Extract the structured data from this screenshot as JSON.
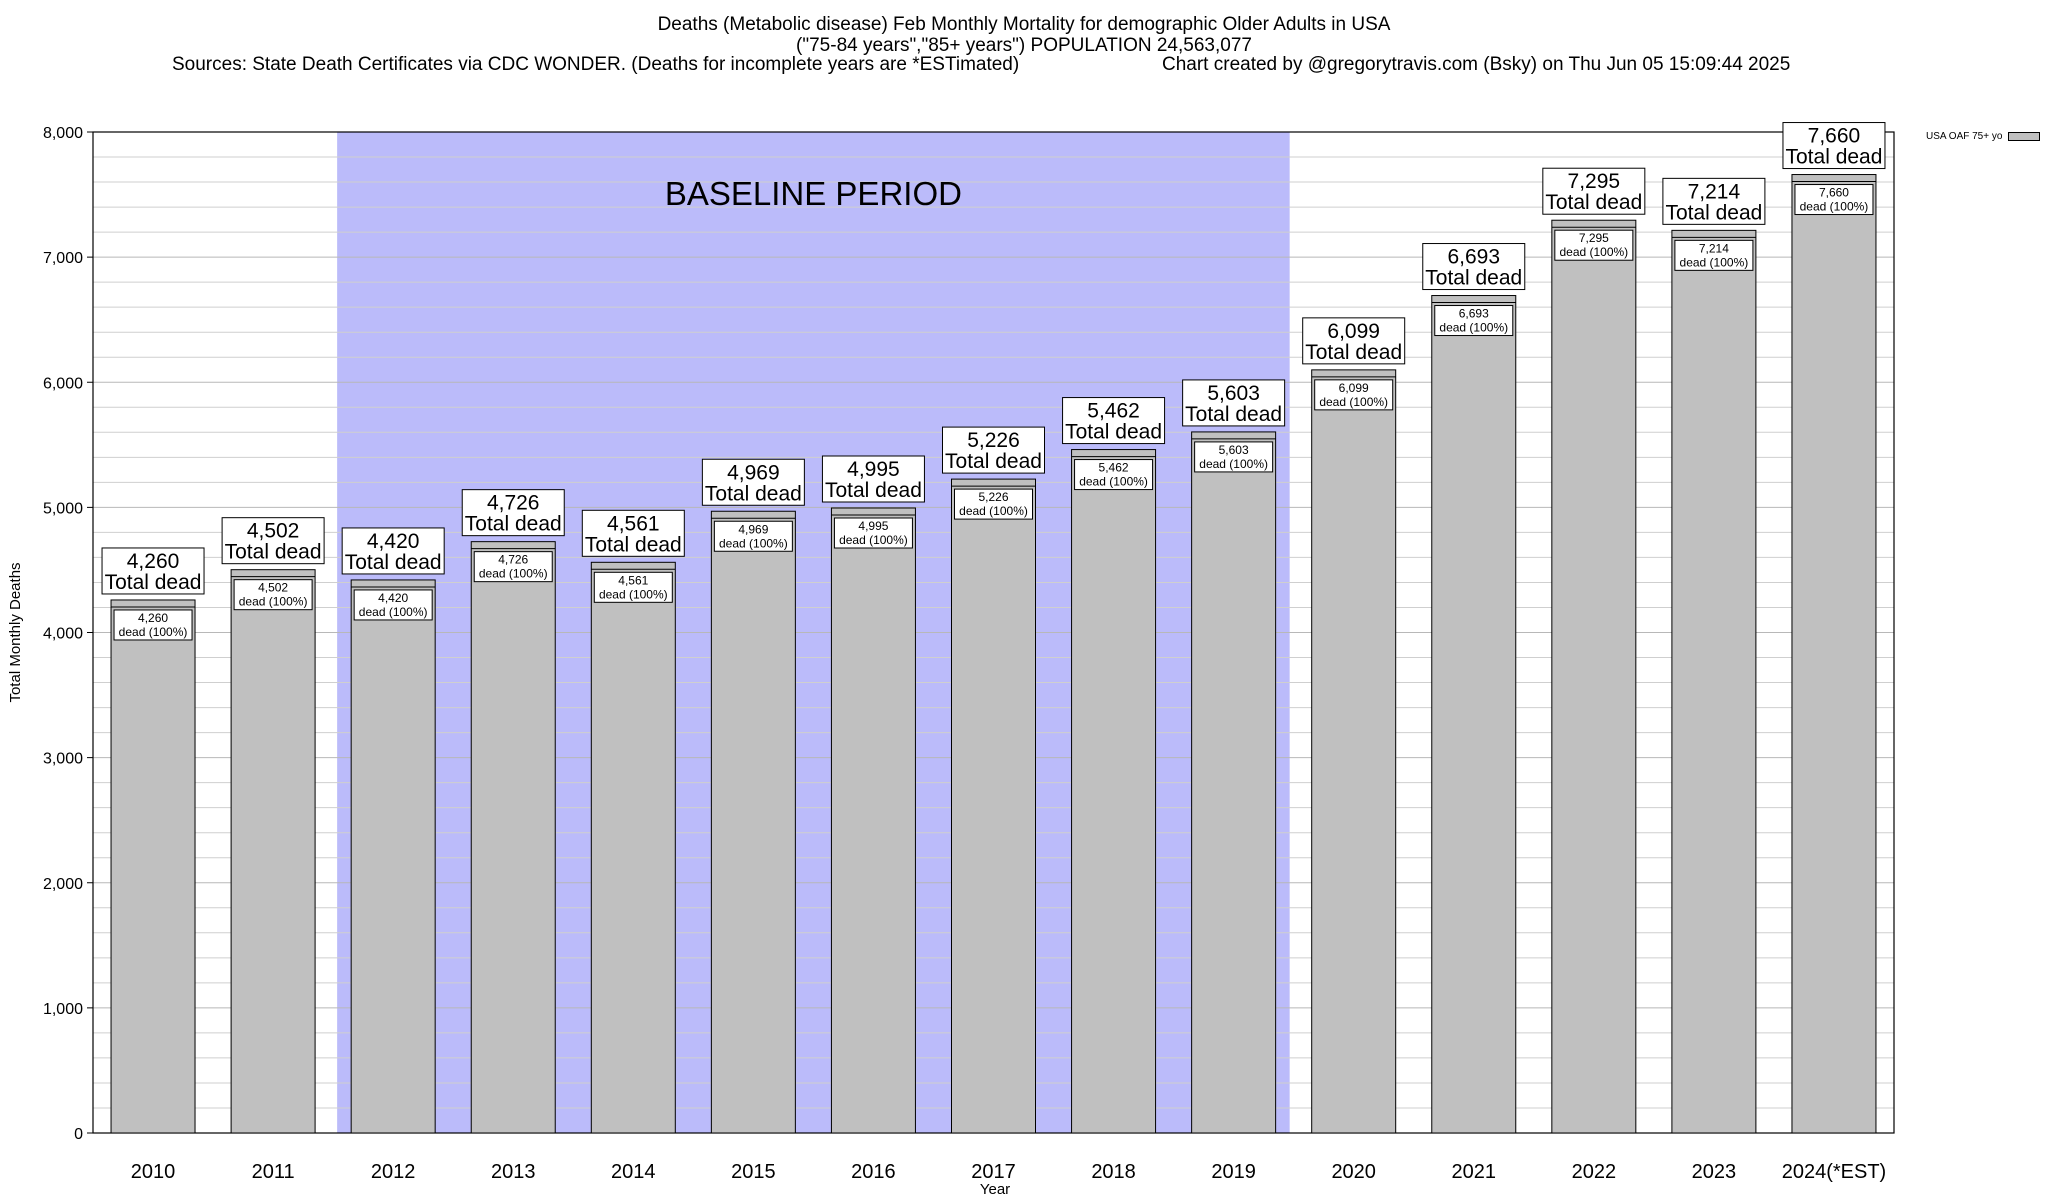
{
  "header": {
    "title": "Deaths (Metabolic disease) Feb Monthly Mortality for demographic Older Adults in USA",
    "subtitle": "(\"75-84 years\",\"85+ years\") POPULATION 24,563,077",
    "sources": "Sources: State Death Certificates via CDC WONDER. (Deaths for incomplete years are *ESTimated)",
    "credit": "Chart created by @gregorytravis.com (Bsky) on Thu Jun 05 15:09:44 2025"
  },
  "colors": {
    "bar": "#c0c0c0",
    "baseline_band": "#bbbbfa",
    "grid": "#cfcfcf"
  },
  "chart_data": {
    "type": "bar",
    "title": "Deaths (Metabolic disease) Feb Monthly Mortality for demographic Older Adults in USA",
    "xlabel": "Year",
    "ylabel": "Total Monthly Deaths",
    "ylim": [
      0,
      8000
    ],
    "y_ticks": [
      0,
      1000,
      2000,
      3000,
      4000,
      5000,
      6000,
      7000,
      8000
    ],
    "y_tick_labels": [
      "0",
      "1,000",
      "2,000",
      "3,000",
      "4,000",
      "5,000",
      "6,000",
      "7,000",
      "8,000"
    ],
    "grid": true,
    "categories": [
      "2010",
      "2011",
      "2012",
      "2013",
      "2014",
      "2015",
      "2016",
      "2017",
      "2018",
      "2019",
      "2020",
      "2021",
      "2022",
      "2023",
      "2024(*EST)"
    ],
    "series": [
      {
        "name": "USA OAF 75+ yo",
        "values": [
          4260,
          4502,
          4420,
          4726,
          4561,
          4969,
          4995,
          5226,
          5462,
          5603,
          6099,
          6693,
          7295,
          7214,
          7660
        ]
      }
    ],
    "value_labels": [
      "4,260",
      "4,502",
      "4,420",
      "4,726",
      "4,561",
      "4,969",
      "4,995",
      "5,226",
      "5,462",
      "5,603",
      "6,099",
      "6,693",
      "7,295",
      "7,214",
      "7,660"
    ],
    "total_label": "Total dead",
    "inner_label_suffix": "dead (100%)",
    "annotation": {
      "text": "BASELINE PERIOD",
      "start_category": "2012",
      "end_category": "2019"
    },
    "legend": {
      "label": "USA OAF 75+ yo",
      "placement": "top-right outside"
    }
  }
}
